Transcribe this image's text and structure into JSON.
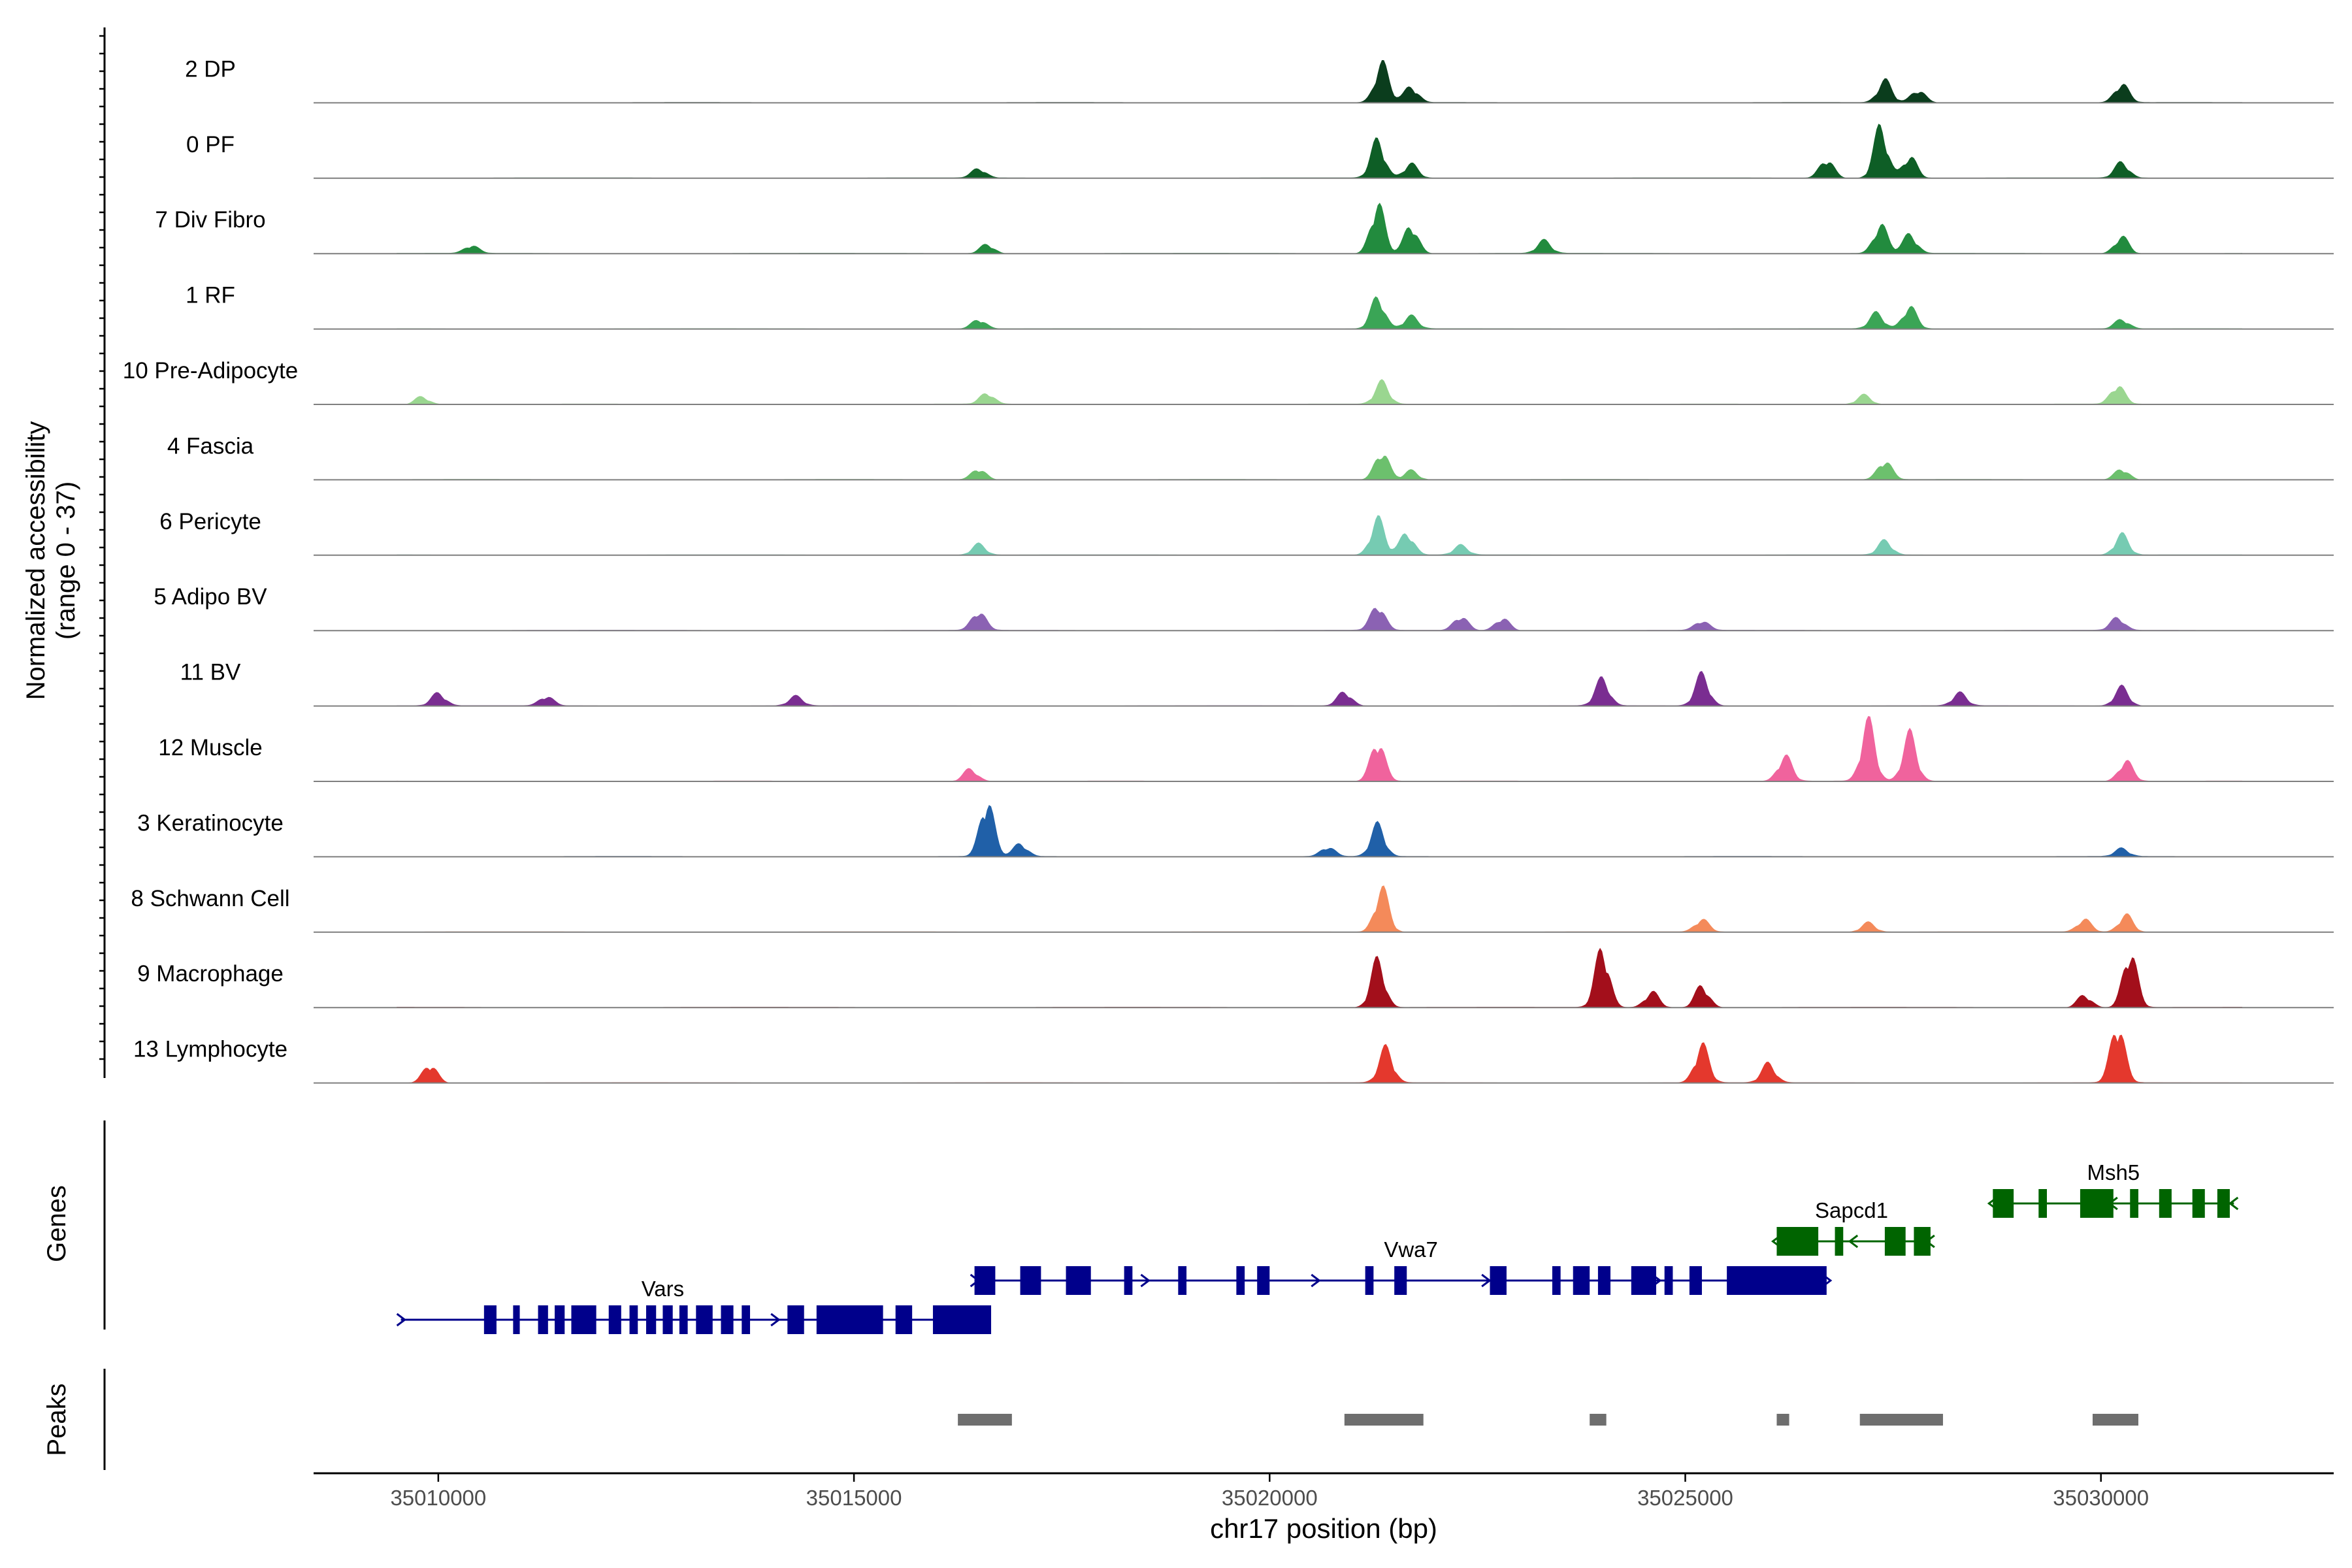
{
  "chart_data": {
    "type": "area",
    "title": "",
    "chromosome": "chr17",
    "xlabel": "chr17 position (bp)",
    "xlim": [
      35008500,
      35032800
    ],
    "xticks": [
      35010000,
      35015000,
      35020000,
      35025000,
      35030000
    ],
    "xtick_labels": [
      "35010000",
      "35015000",
      "35020000",
      "35025000",
      "35030000"
    ],
    "ylabel_line1": "Normalized accessibility",
    "ylabel_line2": "(range 0 - 37)",
    "ylim": [
      0,
      37
    ],
    "panel_labels": {
      "genes": "Genes",
      "peaks": "Peaks"
    },
    "background_color": "#ffffff",
    "axis_color": "#000000",
    "baseline_color": "#7f7f7f",
    "peak_color": "#6e6e6e",
    "tracks": [
      {
        "name": "2 DP",
        "color": "#0b3d1d",
        "peaks": [
          [
            35021350,
            25
          ],
          [
            35021700,
            10
          ],
          [
            35027400,
            14
          ],
          [
            35027800,
            8
          ],
          [
            35030250,
            12
          ]
        ]
      },
      {
        "name": "0 PF",
        "color": "#0e5e26",
        "peaks": [
          [
            35016500,
            6
          ],
          [
            35021300,
            24
          ],
          [
            35021700,
            9
          ],
          [
            35026700,
            12
          ],
          [
            35027350,
            33
          ],
          [
            35027700,
            14
          ],
          [
            35030250,
            10
          ]
        ]
      },
      {
        "name": "7 Div Fibro",
        "color": "#228b3e",
        "peaks": [
          [
            35010400,
            5
          ],
          [
            35016600,
            6
          ],
          [
            35021300,
            32
          ],
          [
            35021700,
            18
          ],
          [
            35023300,
            8
          ],
          [
            35027350,
            18
          ],
          [
            35027700,
            12
          ],
          [
            35030250,
            11
          ]
        ]
      },
      {
        "name": "1 RF",
        "color": "#3aa556",
        "peaks": [
          [
            35016500,
            6
          ],
          [
            35021300,
            20
          ],
          [
            35021700,
            8
          ],
          [
            35027300,
            10
          ],
          [
            35027700,
            14
          ],
          [
            35030250,
            6
          ]
        ]
      },
      {
        "name": "10 Pre-Adipocyte",
        "color": "#9ad690",
        "peaks": [
          [
            35009800,
            5
          ],
          [
            35016600,
            7
          ],
          [
            35021350,
            14
          ],
          [
            35027150,
            6
          ],
          [
            35030200,
            12
          ]
        ]
      },
      {
        "name": "4 Fascia",
        "color": "#6cc06d",
        "peaks": [
          [
            35016500,
            7
          ],
          [
            35021350,
            18
          ],
          [
            35021700,
            6
          ],
          [
            35027400,
            12
          ],
          [
            35030250,
            7
          ]
        ]
      },
      {
        "name": "6 Pericyte",
        "color": "#76cbb2",
        "peaks": [
          [
            35016500,
            7
          ],
          [
            35021300,
            23
          ],
          [
            35021650,
            14
          ],
          [
            35022300,
            6
          ],
          [
            35027400,
            9
          ],
          [
            35030250,
            13
          ]
        ]
      },
      {
        "name": "5 Adipo BV",
        "color": "#8b62b3",
        "peaks": [
          [
            35016500,
            12
          ],
          [
            35021300,
            16
          ],
          [
            35022300,
            9
          ],
          [
            35022800,
            8
          ],
          [
            35025200,
            6
          ],
          [
            35030200,
            8
          ]
        ]
      },
      {
        "name": "11 BV",
        "color": "#7a2d91",
        "peaks": [
          [
            35010000,
            8
          ],
          [
            35011300,
            6
          ],
          [
            35014300,
            6
          ],
          [
            35020900,
            9
          ],
          [
            35024000,
            17
          ],
          [
            35025200,
            20
          ],
          [
            35028300,
            8
          ],
          [
            35030250,
            12
          ]
        ]
      },
      {
        "name": "12 Muscle",
        "color": "#f0639d",
        "peaks": [
          [
            35016400,
            8
          ],
          [
            35021300,
            26
          ],
          [
            35026200,
            16
          ],
          [
            35027200,
            38
          ],
          [
            35027700,
            30
          ],
          [
            35030300,
            13
          ]
        ]
      },
      {
        "name": "3 Keratinocyte",
        "color": "#2060a8",
        "peaks": [
          [
            35016600,
            36
          ],
          [
            35017000,
            8
          ],
          [
            35021300,
            20
          ],
          [
            35020700,
            6
          ],
          [
            35030250,
            5
          ]
        ]
      },
      {
        "name": "8 Schwann Cell",
        "color": "#f48a5a",
        "peaks": [
          [
            35021350,
            28
          ],
          [
            35025200,
            8
          ],
          [
            35027200,
            6
          ],
          [
            35029800,
            8
          ],
          [
            35030300,
            11
          ]
        ]
      },
      {
        "name": "9 Macrophage",
        "color": "#a30f1b",
        "peaks": [
          [
            35021300,
            30
          ],
          [
            35024000,
            38
          ],
          [
            35024600,
            10
          ],
          [
            35025200,
            14
          ],
          [
            35029800,
            8
          ],
          [
            35030350,
            36
          ]
        ]
      },
      {
        "name": "13 Lymphocyte",
        "color": "#e4382d",
        "peaks": [
          [
            35009900,
            12
          ],
          [
            35021400,
            22
          ],
          [
            35025200,
            24
          ],
          [
            35026000,
            12
          ],
          [
            35030200,
            38
          ]
        ]
      }
    ],
    "genes": [
      {
        "name": "Vars",
        "strand": "+",
        "color": "#00008b",
        "start": 35009550,
        "end": 35016300,
        "row": 3,
        "exons": [
          [
            35010550,
            35010700
          ],
          [
            35010900,
            35010980
          ],
          [
            35011200,
            35011320
          ],
          [
            35011400,
            35011520
          ],
          [
            35011600,
            35011900
          ],
          [
            35012050,
            35012200
          ],
          [
            35012300,
            35012400
          ],
          [
            35012500,
            35012620
          ],
          [
            35012700,
            35012820
          ],
          [
            35012900,
            35013000
          ],
          [
            35013100,
            35013300
          ],
          [
            35013400,
            35013550
          ],
          [
            35013650,
            35013750
          ],
          [
            35014200,
            35014400
          ],
          [
            35014550,
            35015350
          ],
          [
            35015500,
            35015700
          ],
          [
            35015950,
            35016650
          ],
          [
            35016150,
            35016300
          ]
        ]
      },
      {
        "name": "Vwa7",
        "strand": "+",
        "color": "#00008b",
        "start": 35016450,
        "end": 35026700,
        "row": 2,
        "exons": [
          [
            35016450,
            35016700
          ],
          [
            35017000,
            35017250
          ],
          [
            35017550,
            35017850
          ],
          [
            35018250,
            35018350
          ],
          [
            35018900,
            35019000
          ],
          [
            35019600,
            35019700
          ],
          [
            35019850,
            35020000
          ],
          [
            35021150,
            35021250
          ],
          [
            35021500,
            35021650
          ],
          [
            35022650,
            35022850
          ],
          [
            35023400,
            35023500
          ],
          [
            35023650,
            35023850
          ],
          [
            35023950,
            35024100
          ],
          [
            35024350,
            35024650
          ],
          [
            35024750,
            35024850
          ],
          [
            35025050,
            35025200
          ],
          [
            35025500,
            35026700
          ]
        ]
      },
      {
        "name": "Sapcd1",
        "strand": "-",
        "color": "#006400",
        "start": 35026100,
        "end": 35027950,
        "row": 1,
        "exons": [
          [
            35026100,
            35026600
          ],
          [
            35026800,
            35026900
          ],
          [
            35027400,
            35027650
          ],
          [
            35027750,
            35027950
          ]
        ]
      },
      {
        "name": "Msh5",
        "strand": "-",
        "color": "#006400",
        "start": 35028700,
        "end": 35031600,
        "row": 0,
        "exons": [
          [
            35028700,
            35028950
          ],
          [
            35029250,
            35029350
          ],
          [
            35029750,
            35030150
          ],
          [
            35030350,
            35030450
          ],
          [
            35030700,
            35030850
          ],
          [
            35031100,
            35031250
          ],
          [
            35031400,
            35031550
          ]
        ]
      }
    ],
    "peak_regions": [
      [
        35016250,
        35016900
      ],
      [
        35020900,
        35021850
      ],
      [
        35023850,
        35024050
      ],
      [
        35026100,
        35026250
      ],
      [
        35027100,
        35028100
      ],
      [
        35029900,
        35030450
      ]
    ]
  }
}
